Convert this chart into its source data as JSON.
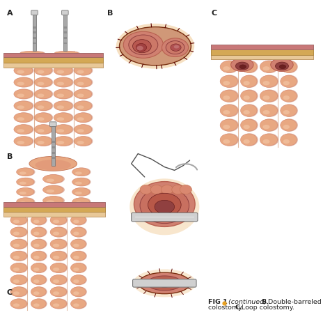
{
  "background_color": "#FFFFFF",
  "bullet_color": "#E8A020",
  "caption_bold1": "FIG 1",
  "caption_italic": "(continued)",
  "caption_b": "B.",
  "caption_b_text": " Double-barreled",
  "caption_line2_pre": "colostomy. ",
  "caption_c": "C.",
  "caption_c_text": " Loop colostomy.",
  "label_A": "A",
  "label_B_top": "B",
  "label_C_top": "C",
  "label_B_left": "B",
  "label_C_left": "C",
  "skin_top": "#E8C898",
  "skin_mid": "#D4A855",
  "skin_bot": "#C08878",
  "colon_light": "#E8A882",
  "colon_mid": "#D98870",
  "colon_dark": "#C07050",
  "colon_shadow": "#9A5A3A",
  "stoma_outer": "#D08070",
  "stoma_mid": "#B86050",
  "stoma_inner": "#904040",
  "stoma_lumen": "#6B2020",
  "fat_color": "#D4B050",
  "tissue_pink": "#C87878",
  "instrument_light": "#D0D0D0",
  "instrument_mid": "#A8A8A8",
  "instrument_dark": "#787878",
  "thread_color": "#505050",
  "suture_color": "#5A0000",
  "glow_color": "#F0C890"
}
